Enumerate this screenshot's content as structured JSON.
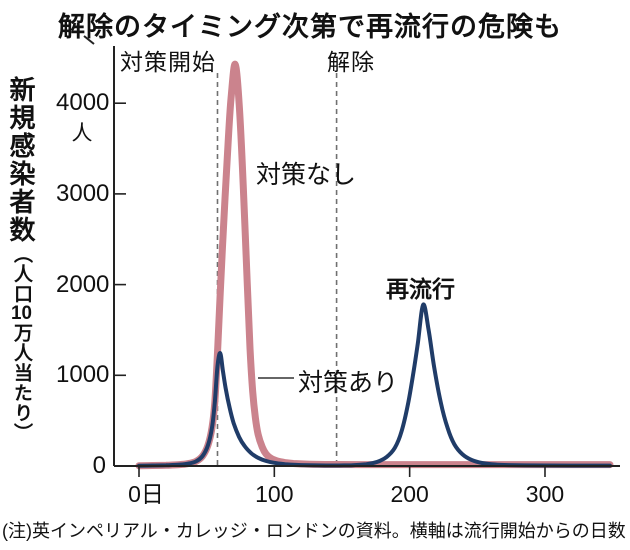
{
  "title": "解除のタイミング次第で再流行の危険も",
  "note": "(注)英インペリアル・カレッジ・ロンドンの資料。横軸は流行開始からの日数",
  "y_axis": {
    "label_main": "新規感染者数",
    "label_sub_open": "（人口",
    "label_sub_tcy": "10",
    "label_sub_close": "万人当たり）",
    "unit": "人",
    "ticks": [
      {
        "value": 4000,
        "label": "4000"
      },
      {
        "value": 3000,
        "label": "3000"
      },
      {
        "value": 2000,
        "label": "2000"
      },
      {
        "value": 1000,
        "label": "1000"
      },
      {
        "value": 0,
        "label": "0"
      }
    ]
  },
  "x_axis": {
    "ticks": [
      {
        "day": 0,
        "label": "0日"
      },
      {
        "day": 100,
        "label": "100"
      },
      {
        "day": 200,
        "label": "200"
      },
      {
        "day": 300,
        "label": "300"
      }
    ]
  },
  "annotations": {
    "measures_start": "対策開始",
    "lift": "解除",
    "no_measures": "対策なし",
    "with_measures": "対策あり",
    "resurgence": "再流行"
  },
  "colors": {
    "no_measures": "#cb838d",
    "with_measures": "#203c68",
    "event_line": "#707070",
    "axis": "#222222",
    "leader": "#333333"
  },
  "chart_data": {
    "type": "line",
    "title": "解除のタイミング次第で再流行の危険も",
    "xlabel": "流行開始からの日数",
    "ylabel": "新規感染者数（人口10万人当たり）",
    "xlim": [
      0,
      350
    ],
    "ylim": [
      0,
      4500
    ],
    "grid": false,
    "legend_position": "inline-annotations",
    "events": [
      {
        "label": "対策開始",
        "day": 58
      },
      {
        "label": "解除",
        "day": 146
      }
    ],
    "series": [
      {
        "name": "対策なし",
        "peak": {
          "day": 71,
          "value": 4430
        },
        "points": [
          [
            0,
            3
          ],
          [
            10,
            5
          ],
          [
            20,
            8
          ],
          [
            30,
            15
          ],
          [
            36,
            25
          ],
          [
            42,
            50
          ],
          [
            47,
            110
          ],
          [
            51,
            230
          ],
          [
            54,
            430
          ],
          [
            56,
            700
          ],
          [
            58,
            1250
          ],
          [
            60,
            1900
          ],
          [
            63,
            2800
          ],
          [
            66,
            3600
          ],
          [
            68,
            4050
          ],
          [
            71,
            4430
          ],
          [
            74,
            4000
          ],
          [
            77,
            3100
          ],
          [
            80,
            2000
          ],
          [
            82,
            1300
          ],
          [
            84,
            820
          ],
          [
            86,
            530
          ],
          [
            88,
            350
          ],
          [
            91,
            210
          ],
          [
            94,
            130
          ],
          [
            98,
            80
          ],
          [
            103,
            52
          ],
          [
            108,
            38
          ],
          [
            114,
            28
          ],
          [
            122,
            22
          ],
          [
            132,
            18
          ],
          [
            145,
            16
          ],
          [
            165,
            15
          ],
          [
            200,
            15
          ],
          [
            240,
            15
          ],
          [
            280,
            15
          ],
          [
            320,
            15
          ],
          [
            348,
            15
          ]
        ]
      },
      {
        "name": "対策あり",
        "peaks": [
          {
            "day": 60,
            "value": 1245
          },
          {
            "day": 210,
            "value": 1780,
            "label": "再流行"
          }
        ],
        "points": [
          [
            0,
            3
          ],
          [
            10,
            5
          ],
          [
            20,
            8
          ],
          [
            30,
            15
          ],
          [
            36,
            25
          ],
          [
            42,
            50
          ],
          [
            47,
            110
          ],
          [
            51,
            230
          ],
          [
            54,
            430
          ],
          [
            56,
            700
          ],
          [
            58,
            1100
          ],
          [
            60,
            1245
          ],
          [
            62,
            1050
          ],
          [
            64,
            860
          ],
          [
            67,
            640
          ],
          [
            70,
            470
          ],
          [
            74,
            320
          ],
          [
            78,
            220
          ],
          [
            83,
            140
          ],
          [
            88,
            90
          ],
          [
            94,
            55
          ],
          [
            100,
            35
          ],
          [
            108,
            20
          ],
          [
            116,
            12
          ],
          [
            126,
            8
          ],
          [
            138,
            6
          ],
          [
            148,
            6
          ],
          [
            158,
            9
          ],
          [
            168,
            20
          ],
          [
            176,
            45
          ],
          [
            183,
            100
          ],
          [
            189,
            200
          ],
          [
            194,
            380
          ],
          [
            199,
            700
          ],
          [
            203,
            1050
          ],
          [
            206,
            1350
          ],
          [
            210,
            1780
          ],
          [
            214,
            1500
          ],
          [
            218,
            1100
          ],
          [
            223,
            700
          ],
          [
            228,
            420
          ],
          [
            233,
            240
          ],
          [
            239,
            130
          ],
          [
            246,
            65
          ],
          [
            254,
            32
          ],
          [
            263,
            16
          ],
          [
            273,
            10
          ],
          [
            285,
            7
          ],
          [
            300,
            5
          ],
          [
            320,
            4
          ],
          [
            348,
            4
          ]
        ]
      }
    ]
  }
}
